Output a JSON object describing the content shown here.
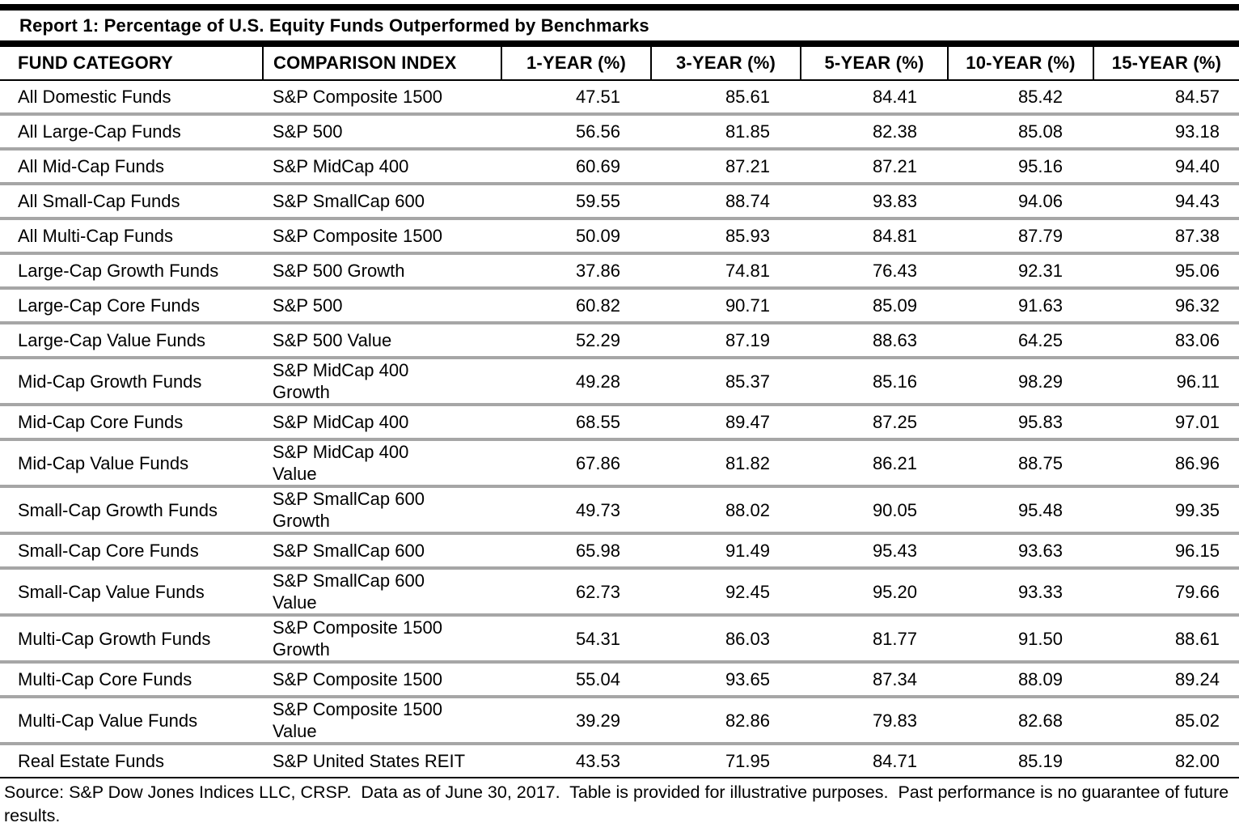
{
  "title": "Report 1: Percentage of U.S. Equity Funds Outperformed by Benchmarks",
  "table": {
    "columns": [
      "FUND CATEGORY",
      "COMPARISON INDEX",
      "1-YEAR (%)",
      "3-YEAR (%)",
      "5-YEAR (%)",
      "10-YEAR (%)",
      "15-YEAR (%)"
    ],
    "rows": [
      [
        "All Domestic Funds",
        "S&P Composite 1500",
        "47.51",
        "85.61",
        "84.41",
        "85.42",
        "84.57"
      ],
      [
        "All Large-Cap Funds",
        "S&P 500",
        "56.56",
        "81.85",
        "82.38",
        "85.08",
        "93.18"
      ],
      [
        "All Mid-Cap Funds",
        "S&P MidCap 400",
        "60.69",
        "87.21",
        "87.21",
        "95.16",
        "94.40"
      ],
      [
        "All Small-Cap Funds",
        "S&P SmallCap 600",
        "59.55",
        "88.74",
        "93.83",
        "94.06",
        "94.43"
      ],
      [
        "All Multi-Cap Funds",
        "S&P Composite 1500",
        "50.09",
        "85.93",
        "84.81",
        "87.79",
        "87.38"
      ],
      [
        "Large-Cap Growth Funds",
        "S&P 500 Growth",
        "37.86",
        "74.81",
        "76.43",
        "92.31",
        "95.06"
      ],
      [
        "Large-Cap Core Funds",
        "S&P 500",
        "60.82",
        "90.71",
        "85.09",
        "91.63",
        "96.32"
      ],
      [
        "Large-Cap Value Funds",
        "S&P 500 Value",
        "52.29",
        "87.19",
        "88.63",
        "64.25",
        "83.06"
      ],
      [
        "Mid-Cap Growth Funds",
        "S&P MidCap 400\nGrowth",
        "49.28",
        "85.37",
        "85.16",
        "98.29",
        "96.11"
      ],
      [
        "Mid-Cap Core Funds",
        "S&P MidCap 400",
        "68.55",
        "89.47",
        "87.25",
        "95.83",
        "97.01"
      ],
      [
        "Mid-Cap Value Funds",
        "S&P MidCap 400\nValue",
        "67.86",
        "81.82",
        "86.21",
        "88.75",
        "86.96"
      ],
      [
        "Small-Cap Growth Funds",
        "S&P SmallCap 600\nGrowth",
        "49.73",
        "88.02",
        "90.05",
        "95.48",
        "99.35"
      ],
      [
        "Small-Cap Core Funds",
        "S&P SmallCap 600",
        "65.98",
        "91.49",
        "95.43",
        "93.63",
        "96.15"
      ],
      [
        "Small-Cap Value Funds",
        "S&P SmallCap 600\nValue",
        "62.73",
        "92.45",
        "95.20",
        "93.33",
        "79.66"
      ],
      [
        "Multi-Cap Growth Funds",
        "S&P Composite 1500\nGrowth",
        "54.31",
        "86.03",
        "81.77",
        "91.50",
        "88.61"
      ],
      [
        "Multi-Cap Core Funds",
        "S&P Composite 1500",
        "55.04",
        "93.65",
        "87.34",
        "88.09",
        "89.24"
      ],
      [
        "Multi-Cap Value Funds",
        "S&P Composite 1500\nValue",
        "39.29",
        "82.86",
        "79.83",
        "82.68",
        "85.02"
      ],
      [
        "Real Estate Funds",
        "S&P United States REIT",
        "43.53",
        "71.95",
        "84.71",
        "85.19",
        "82.00"
      ]
    ]
  },
  "footnote": "Source: S&P Dow Jones Indices LLC, CRSP.  Data as of June 30, 2017.  Table is provided for illustrative purposes.  Past performance is no guarantee of future results.",
  "colors": {
    "border_black": "#000000",
    "row_separator_gray": "#a6a6a6",
    "text": "#000000",
    "background": "#ffffff"
  }
}
